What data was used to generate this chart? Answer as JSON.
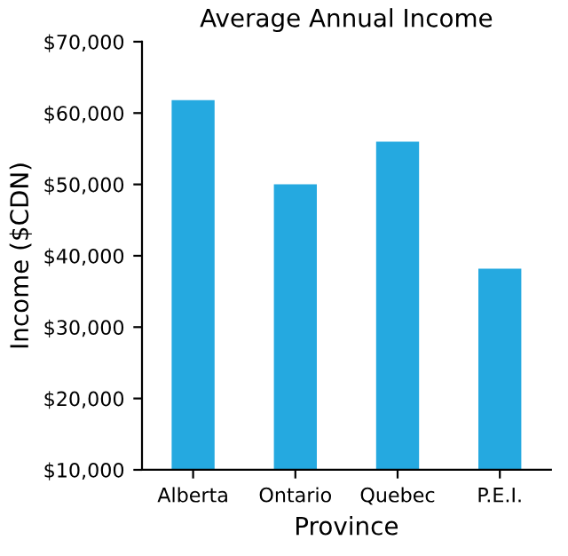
{
  "chart_data": {
    "type": "bar",
    "title": "Average Annual Income",
    "xlabel": "Province",
    "ylabel": "Income ($CDN)",
    "categories": [
      "Alberta",
      "Ontario",
      "Quebec",
      "P.E.I."
    ],
    "series": [
      {
        "color": "#25a9e0",
        "values": [
          61800,
          50000,
          56000,
          38200
        ]
      }
    ],
    "ylim": [
      10000,
      70000
    ],
    "yticks": [
      {
        "value": 10000,
        "label": "$10,000"
      },
      {
        "value": 20000,
        "label": "$20,000"
      },
      {
        "value": 30000,
        "label": "$30,000"
      },
      {
        "value": 40000,
        "label": "$40,000"
      },
      {
        "value": 50000,
        "label": "$50,000"
      },
      {
        "value": 60000,
        "label": "$60,000"
      },
      {
        "value": 70000,
        "label": "$70,000"
      }
    ],
    "grid": false,
    "legend": false
  }
}
